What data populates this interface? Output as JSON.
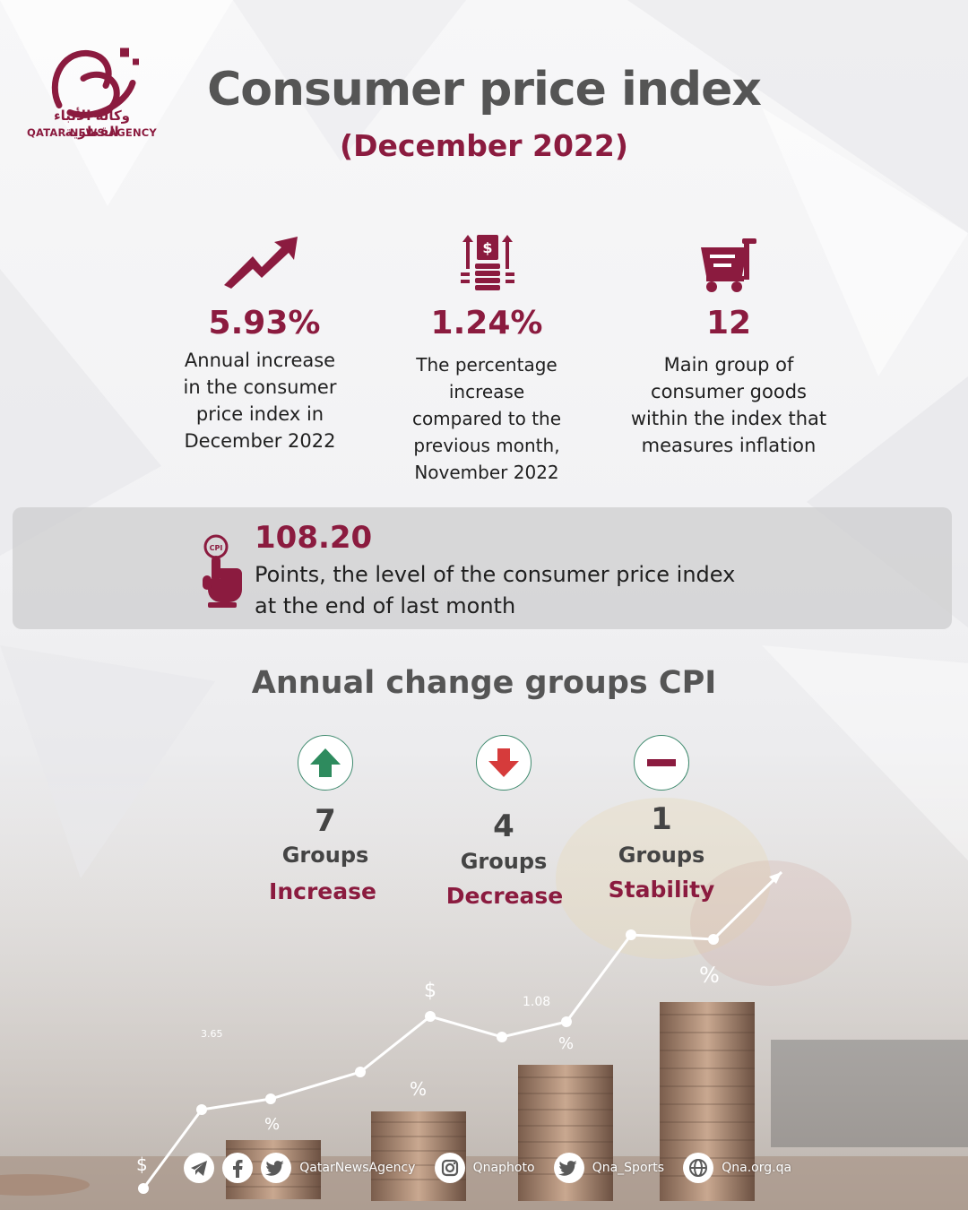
{
  "agency": {
    "name_ar": "وكالة الأنباء القطرية",
    "name_en": "QATAR NEWS AGENCY"
  },
  "header": {
    "title": "Consumer price index",
    "subtitle": "(December 2022)"
  },
  "stats": [
    {
      "icon": "trend-up-arrow-icon",
      "value": "5.93%",
      "description": [
        "Annual increase",
        "in the consumer",
        "price index in",
        "December 2022"
      ]
    },
    {
      "icon": "money-stack-arrows-icon",
      "value": "1.24%",
      "description": [
        "The percentage",
        "increase",
        "compared to the",
        "previous month,",
        "November 2022"
      ]
    },
    {
      "icon": "shopping-cart-icon",
      "value": "12",
      "description": [
        "Main group of",
        "consumer goods",
        "within the index that",
        "measures inflation"
      ]
    }
  ],
  "cpi": {
    "icon": "cpi-hand-pointer-icon",
    "icon_text": "CPI",
    "value": "108.20",
    "description": [
      "Points, the level of the consumer price index",
      "at the end of last month"
    ]
  },
  "groups_title": "Annual change groups CPI",
  "groups": [
    {
      "icon": "arrow-up-icon",
      "count": "7",
      "word": "Groups",
      "label": "Increase"
    },
    {
      "icon": "arrow-down-icon",
      "count": "4",
      "word": "Groups",
      "label": "Decrease"
    },
    {
      "icon": "minus-icon",
      "count": "1",
      "word": "Groups",
      "label": "Stability"
    }
  ],
  "background_labels": [
    "$",
    "3.65",
    "%",
    "%",
    "$",
    "1.08",
    "%",
    "%",
    "$"
  ],
  "footer": [
    {
      "icon": "telegram-icon",
      "text": ""
    },
    {
      "icon": "facebook-icon",
      "text": ""
    },
    {
      "icon": "twitter-icon",
      "text": "QatarNewsAgency"
    },
    {
      "icon": "instagram-icon",
      "text": "Qnaphoto"
    },
    {
      "icon": "twitter-icon",
      "text": "Qna_Sports"
    },
    {
      "icon": "globe-icon",
      "text": "Qna.org.qa"
    }
  ],
  "colors": {
    "accent": "#8b1b3f",
    "up": "#2e8b5e",
    "down": "#d63b3b",
    "title_gray": "#555555"
  }
}
